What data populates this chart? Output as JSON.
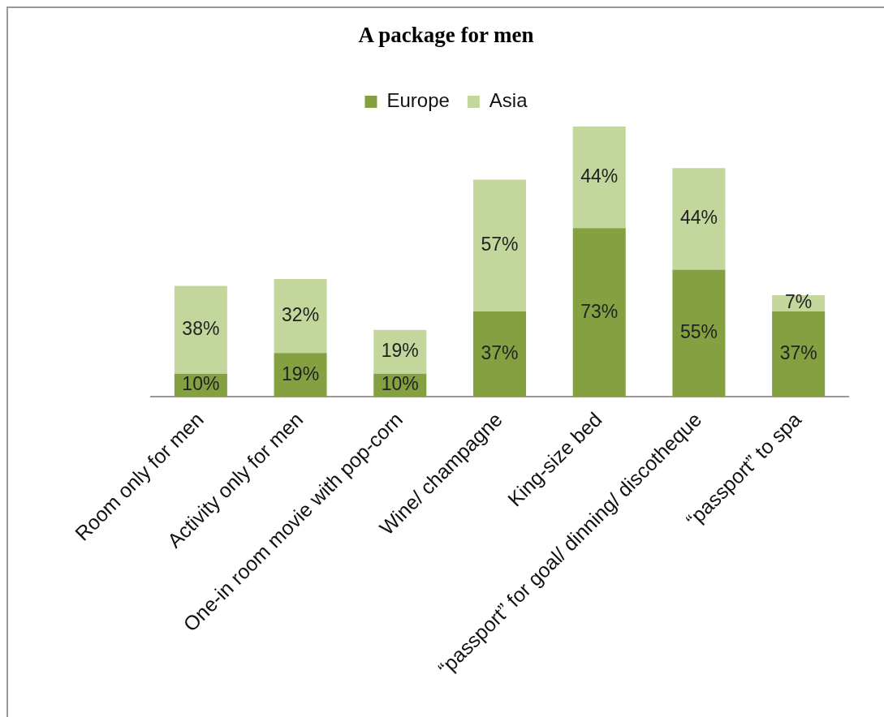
{
  "chart_data": {
    "type": "bar",
    "title": "A package for men",
    "stacked": true,
    "legend": "top",
    "categories": [
      "Room only for men",
      "Activity only for men",
      "One-in room movie with pop-corn",
      "Wine/ champagne",
      "King-size bed",
      "“passport” for goal/ dinning/ discotheque",
      "“passport” to spa"
    ],
    "series": [
      {
        "name": "Europe",
        "color": "#84a041",
        "values": [
          10,
          19,
          10,
          37,
          73,
          55,
          37
        ],
        "value_labels": [
          "10%",
          "19%",
          "10%",
          "37%",
          "73%",
          "55%",
          "37%"
        ]
      },
      {
        "name": "Asia",
        "color": "#c3d69b",
        "values": [
          38,
          32,
          19,
          57,
          44,
          44,
          7
        ],
        "value_labels": [
          "38%",
          "32%",
          "19%",
          "57%",
          "44%",
          "44%",
          "7%"
        ]
      }
    ]
  }
}
